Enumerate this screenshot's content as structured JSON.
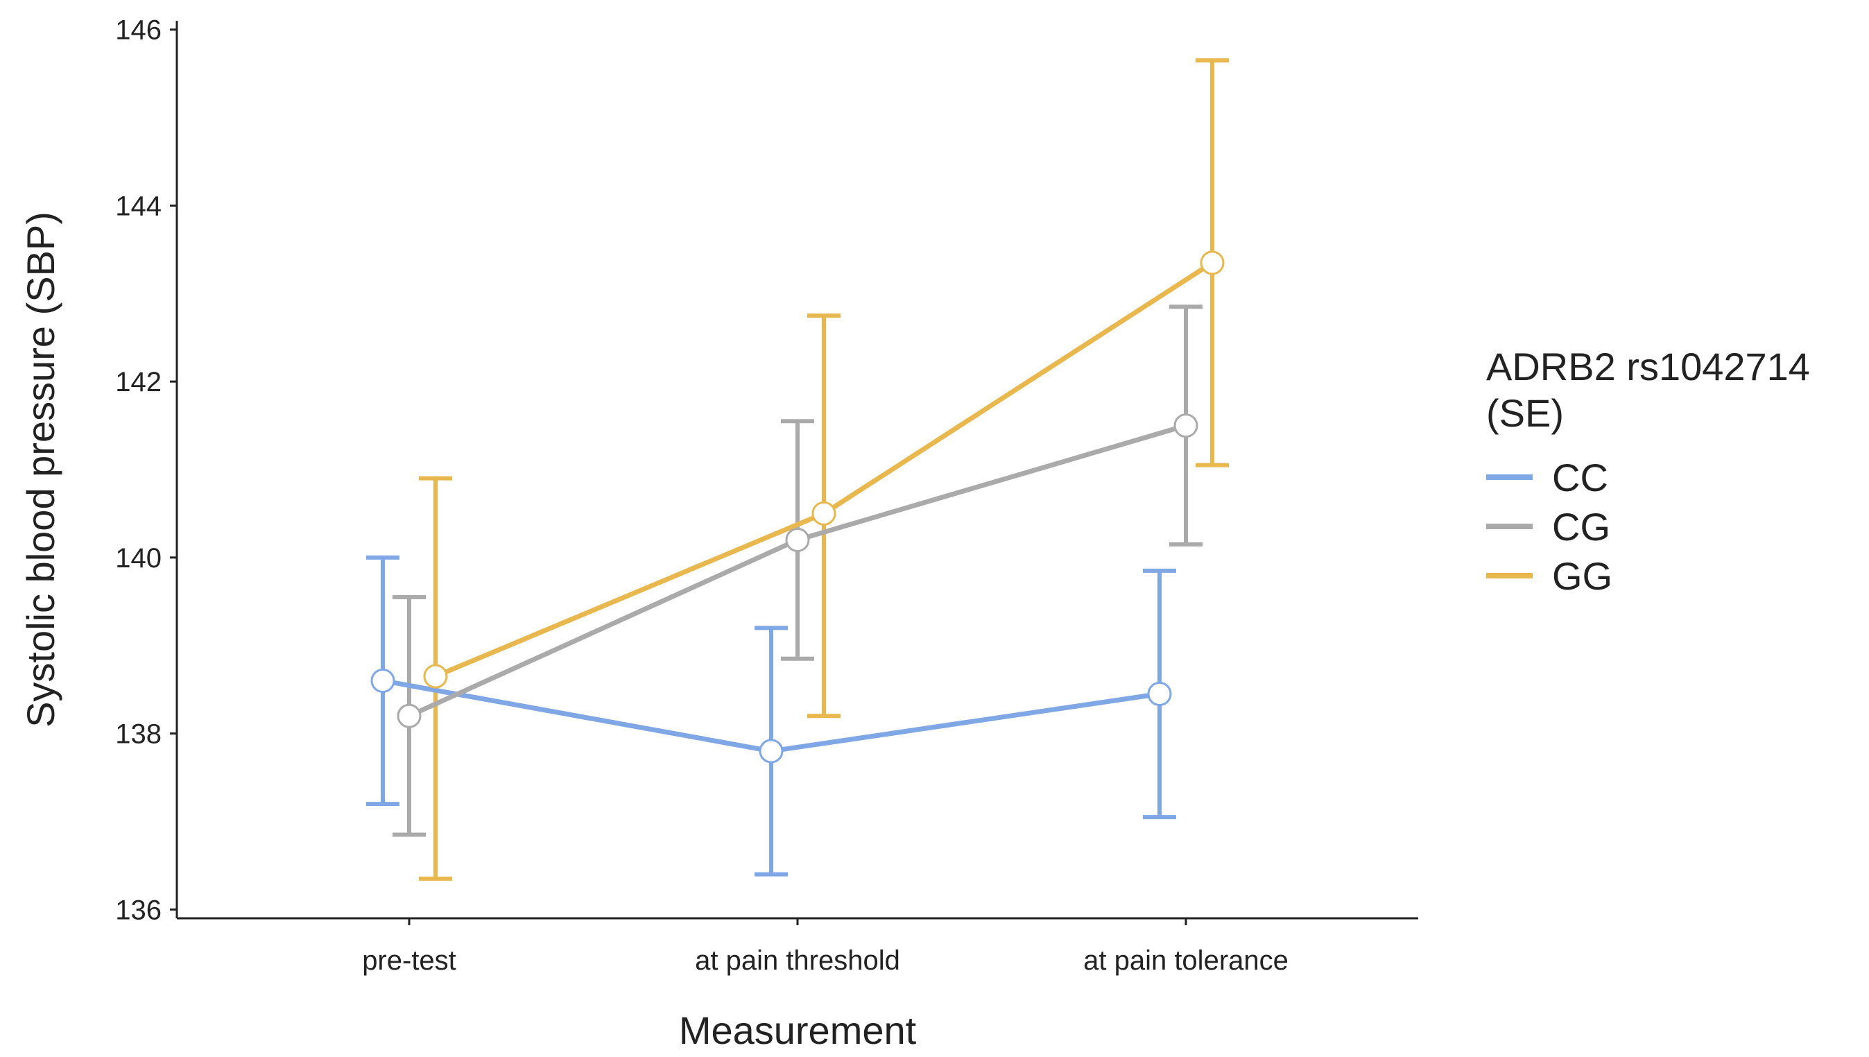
{
  "chart_data": {
    "type": "line",
    "title": "",
    "xlabel": "Measurement",
    "ylabel": "Systolic blood pressure (SBP)",
    "ylim": [
      135.9,
      146.1
    ],
    "yticks": [
      "136",
      "138",
      "140",
      "142",
      "144",
      "146"
    ],
    "categories": [
      "pre-test",
      "at pain threshold",
      "at pain tolerance"
    ],
    "legend": {
      "title_line1": "ADRB2 rs1042714",
      "title_line2": "(SE)",
      "placement": "right"
    },
    "series": [
      {
        "name": "CC",
        "color": "#7fa7e6",
        "values": [
          138.6,
          137.8,
          138.45
        ],
        "lower": [
          137.2,
          136.4,
          137.05
        ],
        "upper": [
          140.0,
          139.2,
          139.85
        ]
      },
      {
        "name": "CG",
        "color": "#aaaaaa",
        "values": [
          138.2,
          140.2,
          141.5
        ],
        "lower": [
          136.85,
          138.85,
          140.15
        ],
        "upper": [
          139.55,
          141.55,
          142.85
        ]
      },
      {
        "name": "GG",
        "color": "#e8b84f",
        "values": [
          138.65,
          140.5,
          143.35
        ],
        "lower": [
          136.35,
          138.2,
          141.05
        ],
        "upper": [
          140.9,
          142.75,
          145.65
        ]
      }
    ]
  }
}
